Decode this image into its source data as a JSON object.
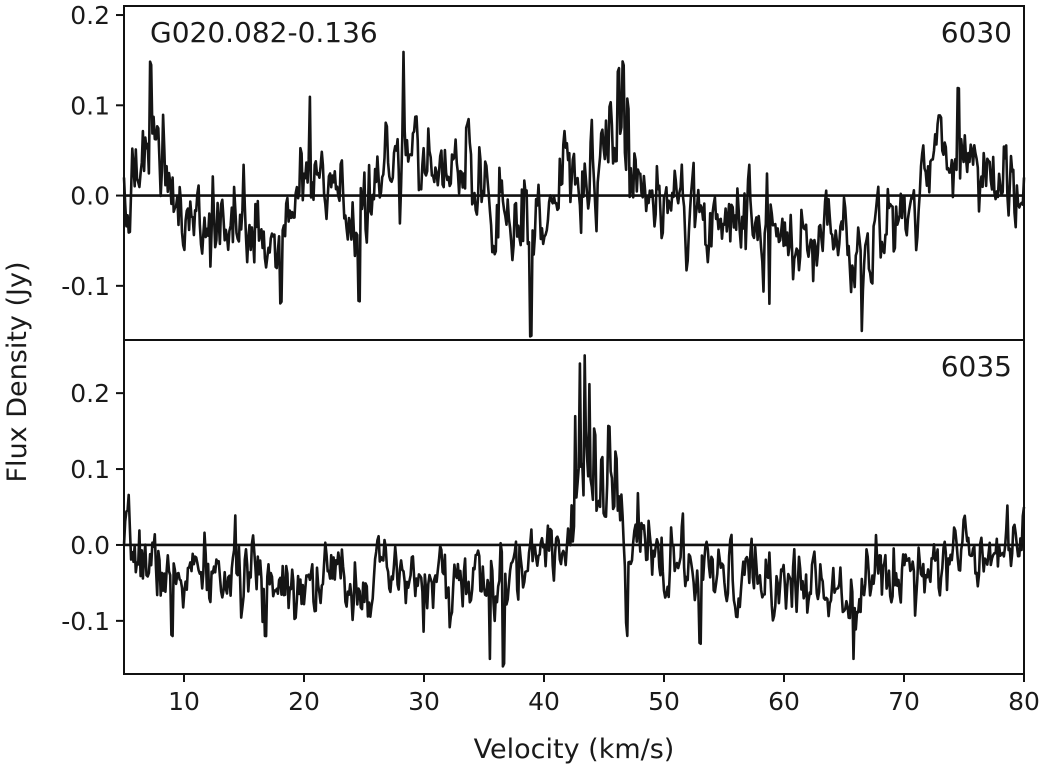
{
  "chart_data": [
    {
      "type": "line",
      "source_label": "G020.082-0.136",
      "frequency_label": "6030",
      "xlabel": "Velocity (km/s)",
      "ylabel": "Flux Density (Jy)",
      "xlim": [
        5,
        80
      ],
      "ylim": [
        -0.16,
        0.21
      ],
      "yticks": [
        -0.1,
        0.0,
        0.1,
        0.2
      ],
      "ytick_labels": [
        "-0.1",
        "0.0",
        "0.1",
        "0.2"
      ],
      "baseline": 0.0,
      "noise_rms": 0.04,
      "seed": 1,
      "x": [
        5,
        7.2,
        10,
        18.1,
        20.5,
        24.6,
        28.3,
        35,
        38.9,
        40.5,
        43.5,
        44.8,
        45.5,
        46.2,
        46.6,
        47.0,
        47.6,
        50,
        58.8,
        66.5,
        74.5,
        80
      ],
      "y": [
        0.02,
        0.15,
        -0.06,
        -0.12,
        0.11,
        -0.12,
        0.16,
        0.0,
        -0.16,
        0.0,
        0.02,
        0.07,
        0.1,
        0.14,
        0.15,
        0.1,
        0.04,
        0.0,
        -0.12,
        -0.15,
        0.12,
        0.02
      ],
      "grid": false
    },
    {
      "type": "line",
      "frequency_label": "6035",
      "xlabel": "Velocity (km/s)",
      "xlim": [
        5,
        80
      ],
      "ylim": [
        -0.17,
        0.27
      ],
      "xticks": [
        10,
        20,
        30,
        40,
        50,
        60,
        70,
        80
      ],
      "xtick_labels": [
        "10",
        "20",
        "30",
        "40",
        "50",
        "60",
        "70",
        "80"
      ],
      "yticks": [
        -0.1,
        0.0,
        0.1,
        0.2
      ],
      "ytick_labels": [
        "-0.1",
        "0.0",
        "0.1",
        "0.2"
      ],
      "baseline": 0.0,
      "noise_rms": 0.038,
      "seed": 7,
      "x": [
        5,
        9,
        16.8,
        35.5,
        36.6,
        40,
        42.0,
        42.6,
        43.0,
        43.4,
        43.8,
        44.2,
        44.8,
        45.4,
        46.0,
        46.5,
        46.9,
        47.5,
        53.0,
        65.8,
        80
      ],
      "y": [
        0.0,
        -0.12,
        -0.12,
        -0.15,
        -0.16,
        0.0,
        0.02,
        0.17,
        0.24,
        0.25,
        0.21,
        0.15,
        0.11,
        0.16,
        0.12,
        0.06,
        -0.13,
        0.02,
        -0.13,
        -0.15,
        0.05
      ],
      "grid": false
    }
  ]
}
